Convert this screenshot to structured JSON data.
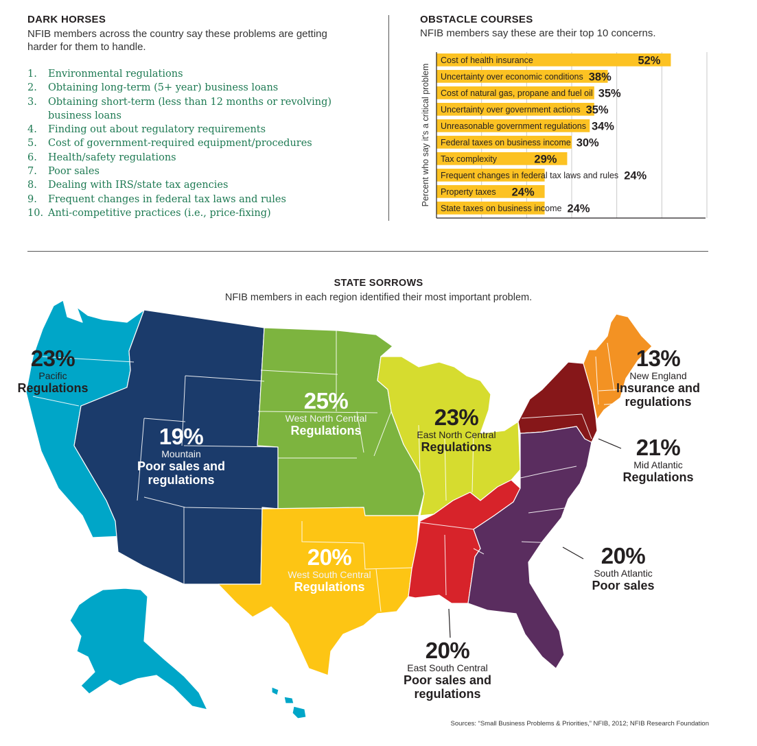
{
  "dark_horses": {
    "title": "DARK HORSES",
    "subtitle": "NFIB members across the country say these problems are getting harder for them to handle.",
    "items": [
      {
        "num": "1.",
        "text": "Environmental regulations"
      },
      {
        "num": "2.",
        "text": "Obtaining long-term (5+ year) business loans"
      },
      {
        "num": "3.",
        "text": "Obtaining short-term (less than 12 months or revolving) business loans"
      },
      {
        "num": "4.",
        "text": "Finding out about regulatory requirements"
      },
      {
        "num": "5.",
        "text": "Cost of government-required equipment/procedures"
      },
      {
        "num": "6.",
        "text": "Health/safety regulations"
      },
      {
        "num": "7.",
        "text": "Poor sales"
      },
      {
        "num": "8.",
        "text": "Dealing with IRS/state tax agencies"
      },
      {
        "num": "9.",
        "text": "Frequent changes in federal tax laws and rules"
      },
      {
        "num": "10.",
        "text": "Anti-competitive practices (i.e., price-fixing)"
      }
    ]
  },
  "obstacle_courses": {
    "title": "OBSTACLE COURSES",
    "subtitle": "NFIB members say these are their top 10 concerns."
  },
  "state_sorrows": {
    "title": "STATE SORROWS",
    "subtitle": "NFIB members in each region identified their most important problem.",
    "regions": {
      "pacific": {
        "pct": "23%",
        "name": "Pacific",
        "problem": "Regulations"
      },
      "mountain": {
        "pct": "19%",
        "name": "Mountain",
        "problem": "Poor sales and regulations"
      },
      "wnc": {
        "pct": "25%",
        "name": "West North Central",
        "problem": "Regulations"
      },
      "enc": {
        "pct": "23%",
        "name": "East North Central",
        "problem": "Regulations"
      },
      "ne": {
        "pct": "13%",
        "name": "New England",
        "problem": "Insurance and regulations"
      },
      "ma": {
        "pct": "21%",
        "name": "Mid Atlantic",
        "problem": "Regulations"
      },
      "sa": {
        "pct": "20%",
        "name": "South Atlantic",
        "problem": "Poor sales"
      },
      "wsc": {
        "pct": "20%",
        "name": "West South Central",
        "problem": "Regulations"
      },
      "esc": {
        "pct": "20%",
        "name": "East South Central",
        "problem": "Poor sales and regulations"
      }
    }
  },
  "sources": "Sources: “Small Business Problems & Priorities,” NFIB, 2012; NFIB Research Foundation",
  "colors": {
    "bar": "#fcc223",
    "pacific": "#00a6c8",
    "mountain": "#1b3b6b",
    "wnc": "#7db43f",
    "enc": "#d6dc2f",
    "ne": "#f39223",
    "ma": "#861719",
    "sa": "#5a2d5f",
    "wsc": "#fdc514",
    "esc": "#d7232a",
    "list_text": "#1e7a53"
  },
  "chart_data": {
    "type": "bar",
    "orientation": "horizontal",
    "ylabel": "Percent who say it's a critical problem",
    "categories": [
      "Cost of health insurance",
      "Uncertainty over economic conditions",
      "Cost of natural gas, propane and fuel oil",
      "Uncertainty over government actions",
      "Unreasonable government regulations",
      "Federal taxes on business income",
      "Tax complexity",
      "Frequent changes in federal tax laws and rules",
      "Property taxes",
      "State taxes on business income"
    ],
    "values": [
      52,
      38,
      35,
      35,
      34,
      30,
      29,
      24,
      24,
      24
    ],
    "value_labels": [
      "52%",
      "38%",
      "35%",
      "35%",
      "34%",
      "30%",
      "29%",
      "24%",
      "24%",
      "24%"
    ],
    "xlim": [
      0,
      60
    ],
    "grid": true
  }
}
